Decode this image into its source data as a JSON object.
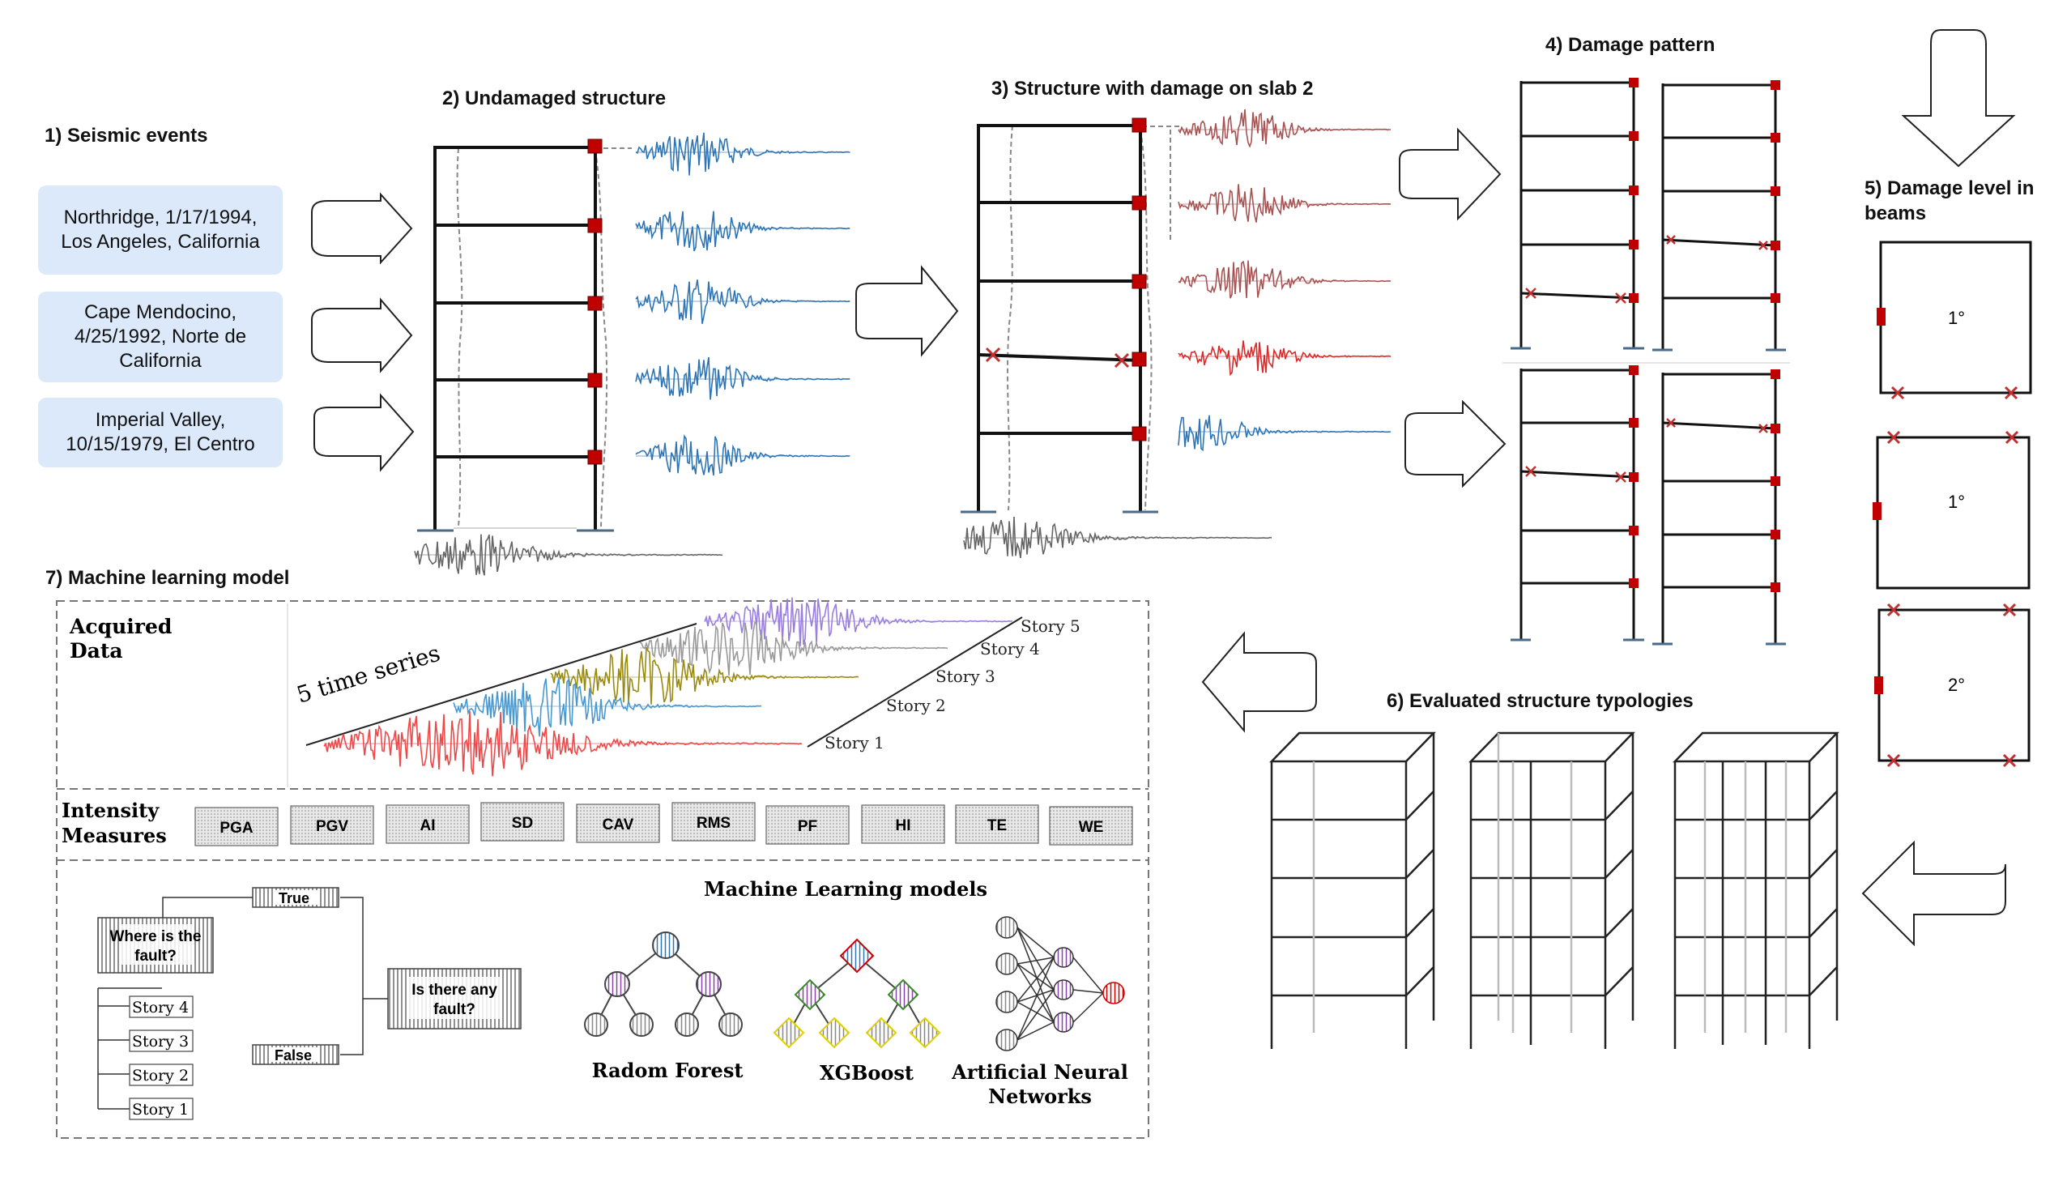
{
  "headings": {
    "seismic_events": "1) Seismic events",
    "undamaged": "2) Undamaged structure",
    "damaged": "3) Structure with damage on slab 2",
    "damage_pattern": "4) Damage pattern",
    "damage_level_line1": "5) Damage level in",
    "damage_level_line2": "beams",
    "typologies": "6) Evaluated structure typologies",
    "ml_model": "7) Machine learning model"
  },
  "events": [
    {
      "line1": "Northridge, 1/17/1994,",
      "line2": "Los Angeles, California",
      "line3": ""
    },
    {
      "line1": "Cape Mendocino,",
      "line2": "4/25/1992, Norte de",
      "line3": "California"
    },
    {
      "line1": "Imperial Valley,",
      "line2": "10/15/1979, El Centro",
      "line3": ""
    }
  ],
  "damage_levels": [
    "1°",
    "1°",
    "2°"
  ],
  "acquired": {
    "label_line1": "Acquired",
    "label_line2": "Data",
    "time_series_label": "5 time series",
    "stories": [
      "Story 1",
      "Story 2",
      "Story 3",
      "Story 4",
      "Story 5"
    ]
  },
  "intensity": {
    "label_line1": "Intensity",
    "label_line2": "Measures",
    "measures": [
      "PGA",
      "PGV",
      "AI",
      "SD",
      "CAV",
      "RMS",
      "PF",
      "HI",
      "TE",
      "WE"
    ]
  },
  "decision": {
    "true_label": "True",
    "false_label": "False",
    "where_line1": "Where is the",
    "where_line2": "fault?",
    "any_line1": "Is there any",
    "any_line2": "fault?",
    "stories": [
      "Story 4",
      "Story 3",
      "Story 2",
      "Story 1"
    ]
  },
  "ml": {
    "title": "Machine Learning models",
    "rf": "Radom Forest",
    "xgb": "XGBoost",
    "ann_line1": "Artificial Neural",
    "ann_line2": "Networks"
  },
  "colors": {
    "event_box": "#dbe9fb",
    "signal_blue": "#2e75b6",
    "signal_damaged": "#a85353",
    "signal_red": "#d92b2b",
    "signal_gray": "#666666",
    "node_red": "#c00000",
    "series_red": "#f04848",
    "series_blue": "#4a98d0",
    "series_olive": "#9a8a10",
    "series_gray": "#9a9a9a",
    "series_purple": "#9a7ee0"
  }
}
